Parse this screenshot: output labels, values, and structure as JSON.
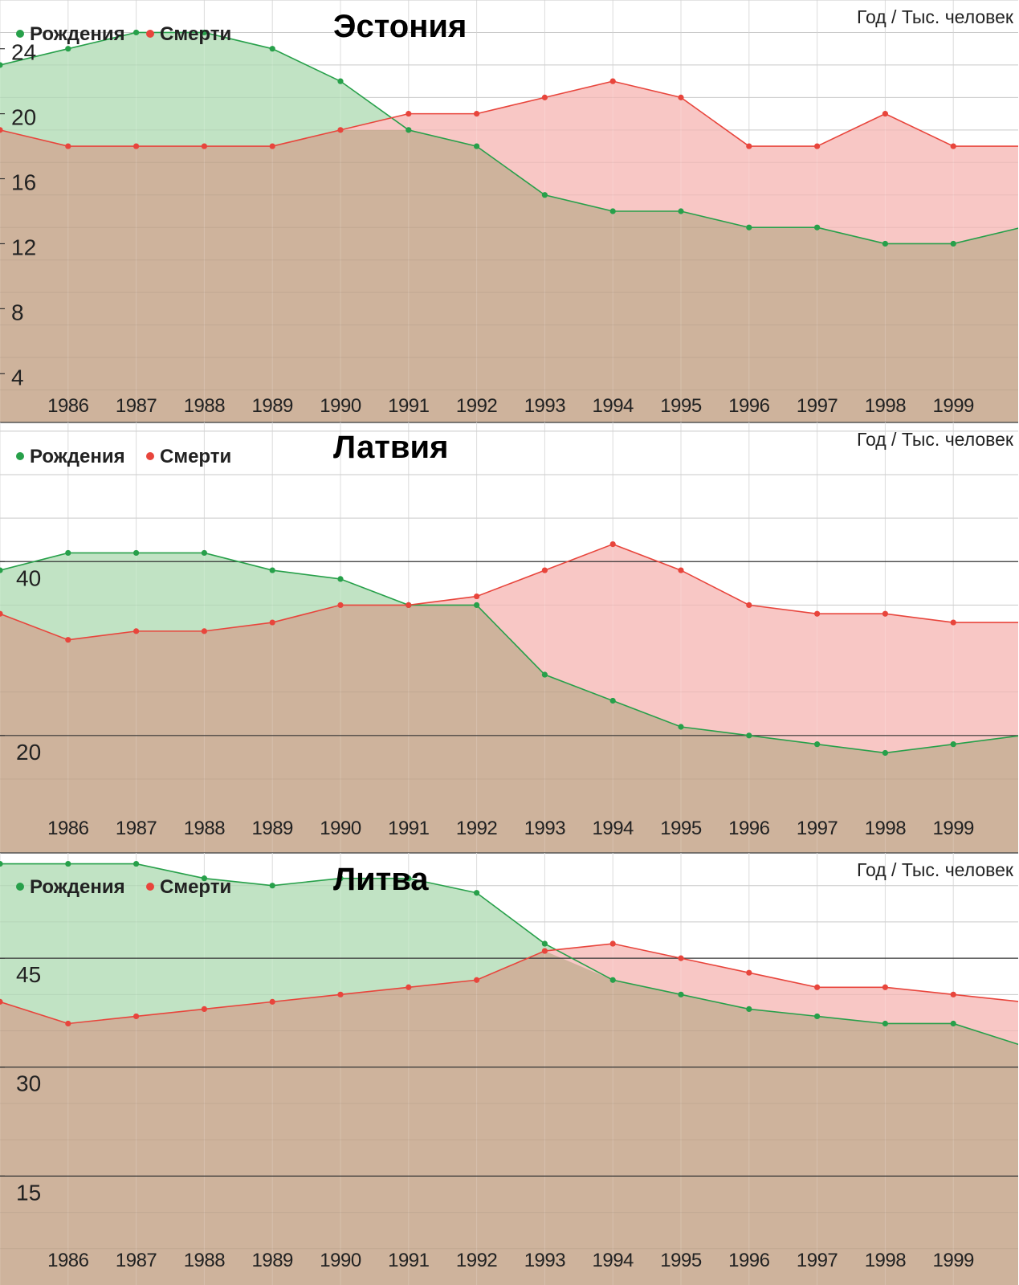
{
  "colors": {
    "births": "#27a04a",
    "deaths": "#e8453c",
    "births_fill": "#c1e3c4",
    "deaths_fill": "#f8c7c5",
    "overlap_fill": "#ceb39c",
    "grid": "#d6d6d6",
    "major_grid": "#333333",
    "text": "#222222"
  },
  "chart_data": [
    {
      "type": "area",
      "title": "Эстония",
      "unit_label": "Год / Тыс. человек",
      "legend": [
        "Рождения",
        "Смерти"
      ],
      "legend_placement": "top-left",
      "grid": true,
      "x": [
        1985,
        1986,
        1987,
        1988,
        1989,
        1990,
        1991,
        1992,
        1993,
        1994,
        1995,
        1996,
        1997,
        1998,
        1999,
        2000
      ],
      "x_tick_labels": [
        "1986",
        "1987",
        "1988",
        "1989",
        "1990",
        "1991",
        "1992",
        "1993",
        "1994",
        "1995",
        "1996",
        "1997",
        "1998",
        "1999"
      ],
      "y_tick_labels": [
        "24",
        "20",
        "16",
        "12",
        "8",
        "4"
      ],
      "ylim": [
        1,
        27
      ],
      "series": [
        {
          "name": "Рождения",
          "values": [
            23,
            24,
            25,
            25,
            24,
            22,
            19,
            18,
            15,
            14,
            14,
            13,
            13,
            12,
            12,
            13
          ]
        },
        {
          "name": "Смерти",
          "values": [
            19,
            18,
            18,
            18,
            18,
            19,
            20,
            20,
            21,
            22,
            21,
            18,
            18,
            20,
            18,
            18
          ]
        }
      ]
    },
    {
      "type": "area",
      "title": "Латвия",
      "unit_label": "Год / Тыс. человек",
      "legend": [
        "Рождения",
        "Смерти"
      ],
      "legend_placement": "top-left",
      "grid": true,
      "x": [
        1985,
        1986,
        1987,
        1988,
        1989,
        1990,
        1991,
        1992,
        1993,
        1994,
        1995,
        1996,
        1997,
        1998,
        1999,
        2000
      ],
      "x_tick_labels": [
        "1986",
        "1987",
        "1988",
        "1989",
        "1990",
        "1991",
        "1992",
        "1993",
        "1994",
        "1995",
        "1996",
        "1997",
        "1998",
        "1999"
      ],
      "y_tick_labels": [
        "40",
        "20"
      ],
      "ylim": [
        6.5,
        56
      ],
      "series": [
        {
          "name": "Рождения",
          "values": [
            39,
            41,
            41,
            41,
            39,
            38,
            35,
            35,
            27,
            24,
            21,
            20,
            19,
            18,
            19,
            20
          ]
        },
        {
          "name": "Смерти",
          "values": [
            34,
            31,
            32,
            32,
            33,
            35,
            35,
            36,
            39,
            42,
            39,
            35,
            34,
            34,
            33,
            33
          ]
        }
      ]
    },
    {
      "type": "area",
      "title": "Литва",
      "unit_label": "Год / Тыс. человек",
      "legend": [
        "Рождения",
        "Смерти"
      ],
      "legend_placement": "top-left",
      "grid": true,
      "x": [
        1985,
        1986,
        1987,
        1988,
        1989,
        1990,
        1991,
        1992,
        1993,
        1994,
        1995,
        1996,
        1997,
        1998,
        1999,
        2000
      ],
      "x_tick_labels": [
        "1986",
        "1987",
        "1988",
        "1989",
        "1990",
        "1991",
        "1992",
        "1993",
        "1994",
        "1995",
        "1996",
        "1997",
        "1998",
        "1999"
      ],
      "y_tick_labels": [
        "45",
        "30",
        "15"
      ],
      "ylim": [
        0,
        59.5
      ],
      "series": [
        {
          "name": "Рождения",
          "values": [
            58,
            58,
            58,
            56,
            55,
            56,
            56,
            54,
            47,
            42,
            40,
            38,
            37,
            36,
            36,
            33
          ]
        },
        {
          "name": "Смерти",
          "values": [
            39,
            36,
            37,
            38,
            39,
            40,
            41,
            42,
            46,
            47,
            45,
            43,
            41,
            41,
            40,
            39
          ]
        }
      ]
    }
  ]
}
